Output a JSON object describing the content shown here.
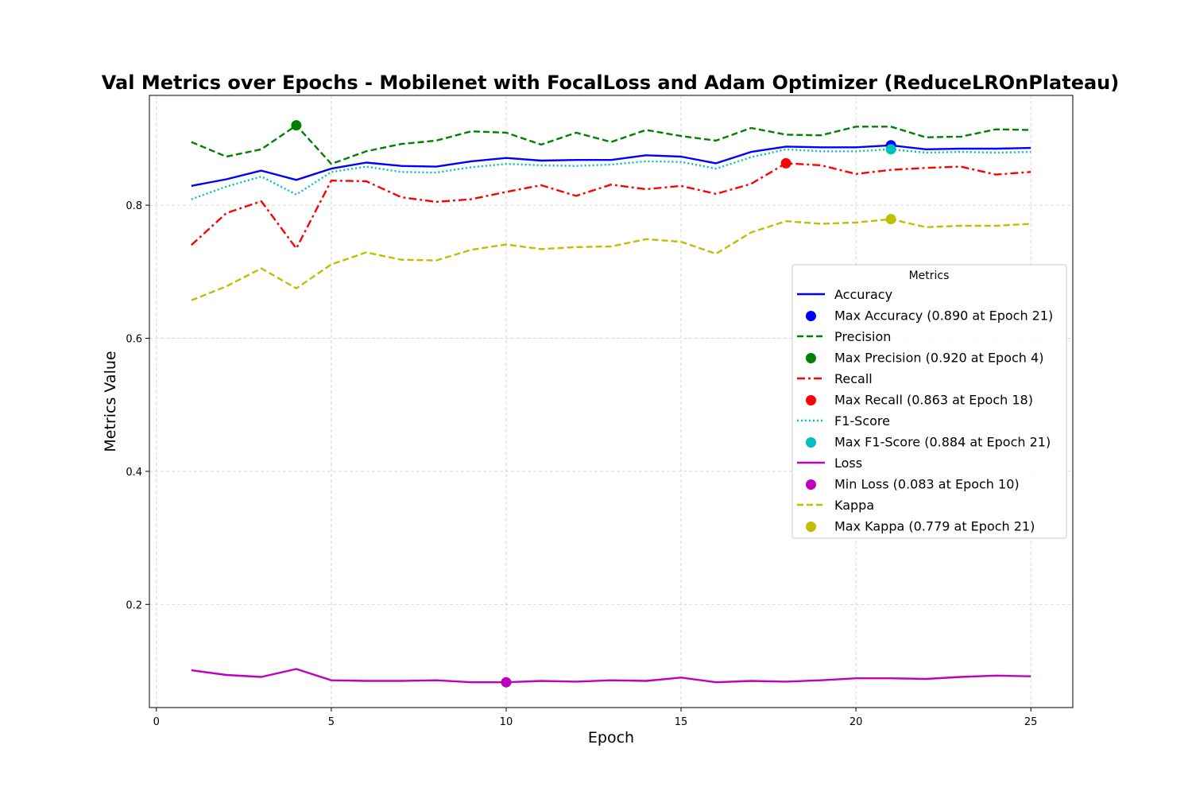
{
  "chart_data": {
    "type": "line",
    "title": "Val Metrics over Epochs - Mobilenet with FocalLoss and Adam Optimizer (ReduceLROnPlateau)",
    "xlabel": "Epoch",
    "ylabel": "Metrics Value",
    "xlim": [
      -0.2,
      26.2
    ],
    "ylim": [
      0.045,
      0.965
    ],
    "xticks": [
      0,
      5,
      10,
      15,
      20,
      25
    ],
    "yticks": [
      0.2,
      0.4,
      0.6,
      0.8
    ],
    "xtick_labels": [
      "0",
      "5",
      "10",
      "15",
      "20",
      "25"
    ],
    "ytick_labels": [
      "0.2",
      "0.4",
      "0.6",
      "0.8"
    ],
    "grid": true,
    "legend": {
      "title": "Metrics",
      "placement": "center-right"
    },
    "x": [
      1,
      2,
      3,
      4,
      5,
      6,
      7,
      8,
      9,
      10,
      11,
      12,
      13,
      14,
      15,
      16,
      17,
      18,
      19,
      20,
      21,
      22,
      23,
      24,
      25
    ],
    "series": [
      {
        "name": "Accuracy",
        "color": "#0000ff",
        "style": "solid",
        "values": [
          0.829,
          0.839,
          0.852,
          0.838,
          0.855,
          0.864,
          0.859,
          0.858,
          0.866,
          0.871,
          0.867,
          0.868,
          0.868,
          0.875,
          0.873,
          0.863,
          0.88,
          0.888,
          0.887,
          0.887,
          0.89,
          0.884,
          0.885,
          0.885,
          0.886
        ]
      },
      {
        "name": "Precision",
        "color": "#008000",
        "style": "dashed",
        "values": [
          0.895,
          0.873,
          0.884,
          0.92,
          0.862,
          0.881,
          0.892,
          0.897,
          0.911,
          0.909,
          0.891,
          0.909,
          0.895,
          0.913,
          0.904,
          0.897,
          0.916,
          0.906,
          0.905,
          0.918,
          0.918,
          0.902,
          0.903,
          0.914,
          0.913
        ]
      },
      {
        "name": "Recall",
        "color": "#ff0000",
        "style": "dashdot",
        "values": [
          0.74,
          0.788,
          0.806,
          0.735,
          0.837,
          0.836,
          0.812,
          0.805,
          0.809,
          0.82,
          0.83,
          0.814,
          0.831,
          0.824,
          0.829,
          0.817,
          0.832,
          0.863,
          0.86,
          0.847,
          0.853,
          0.856,
          0.858,
          0.846,
          0.85
        ]
      },
      {
        "name": "F1-Score",
        "color": "#00bfbf",
        "style": "dotted",
        "values": [
          0.809,
          0.828,
          0.843,
          0.816,
          0.85,
          0.858,
          0.85,
          0.849,
          0.857,
          0.862,
          0.86,
          0.859,
          0.861,
          0.866,
          0.865,
          0.855,
          0.872,
          0.884,
          0.881,
          0.881,
          0.884,
          0.879,
          0.88,
          0.879,
          0.88
        ]
      },
      {
        "name": "Loss",
        "color": "#bf00bf",
        "style": "solid",
        "values": [
          0.101,
          0.094,
          0.091,
          0.103,
          0.086,
          0.085,
          0.085,
          0.086,
          0.083,
          0.083,
          0.085,
          0.084,
          0.086,
          0.085,
          0.09,
          0.083,
          0.085,
          0.084,
          0.086,
          0.089,
          0.089,
          0.088,
          0.091,
          0.093,
          0.092
        ]
      },
      {
        "name": "Kappa",
        "color": "#bfbf00",
        "style": "dashed",
        "values": [
          0.657,
          0.678,
          0.705,
          0.675,
          0.711,
          0.729,
          0.718,
          0.717,
          0.733,
          0.741,
          0.734,
          0.737,
          0.738,
          0.749,
          0.745,
          0.727,
          0.759,
          0.776,
          0.772,
          0.774,
          0.779,
          0.767,
          0.769,
          0.769,
          0.772
        ]
      }
    ],
    "markers": [
      {
        "name": "Max Accuracy (0.890 at Epoch 21)",
        "color": "#0000ff",
        "x": 21,
        "y": 0.89
      },
      {
        "name": "Max Precision (0.920 at Epoch 4)",
        "color": "#008000",
        "x": 4,
        "y": 0.92
      },
      {
        "name": "Max Recall (0.863 at Epoch 18)",
        "color": "#ff0000",
        "x": 18,
        "y": 0.863
      },
      {
        "name": "Max F1-Score (0.884 at Epoch 21)",
        "color": "#00bfbf",
        "x": 21,
        "y": 0.884
      },
      {
        "name": "Min Loss (0.083 at Epoch 10)",
        "color": "#bf00bf",
        "x": 10,
        "y": 0.083
      },
      {
        "name": "Max Kappa (0.779 at Epoch 21)",
        "color": "#bfbf00",
        "x": 21,
        "y": 0.779
      }
    ],
    "legend_entries": [
      {
        "label": "Accuracy",
        "kind": "line",
        "color": "#0000ff",
        "style": "solid"
      },
      {
        "label": "Max Accuracy (0.890 at Epoch 21)",
        "kind": "marker",
        "color": "#0000ff"
      },
      {
        "label": "Precision",
        "kind": "line",
        "color": "#008000",
        "style": "dashed"
      },
      {
        "label": "Max Precision (0.920 at Epoch 4)",
        "kind": "marker",
        "color": "#008000"
      },
      {
        "label": "Recall",
        "kind": "line",
        "color": "#ff0000",
        "style": "dashdot"
      },
      {
        "label": "Max Recall (0.863 at Epoch 18)",
        "kind": "marker",
        "color": "#ff0000"
      },
      {
        "label": "F1-Score",
        "kind": "line",
        "color": "#00bfbf",
        "style": "dotted"
      },
      {
        "label": "Max F1-Score (0.884 at Epoch 21)",
        "kind": "marker",
        "color": "#00bfbf"
      },
      {
        "label": "Loss",
        "kind": "line",
        "color": "#bf00bf",
        "style": "solid"
      },
      {
        "label": "Min Loss (0.083 at Epoch 10)",
        "kind": "marker",
        "color": "#bf00bf"
      },
      {
        "label": "Kappa",
        "kind": "line",
        "color": "#bfbf00",
        "style": "dashed"
      },
      {
        "label": "Max Kappa (0.779 at Epoch 21)",
        "kind": "marker",
        "color": "#bfbf00"
      }
    ]
  }
}
